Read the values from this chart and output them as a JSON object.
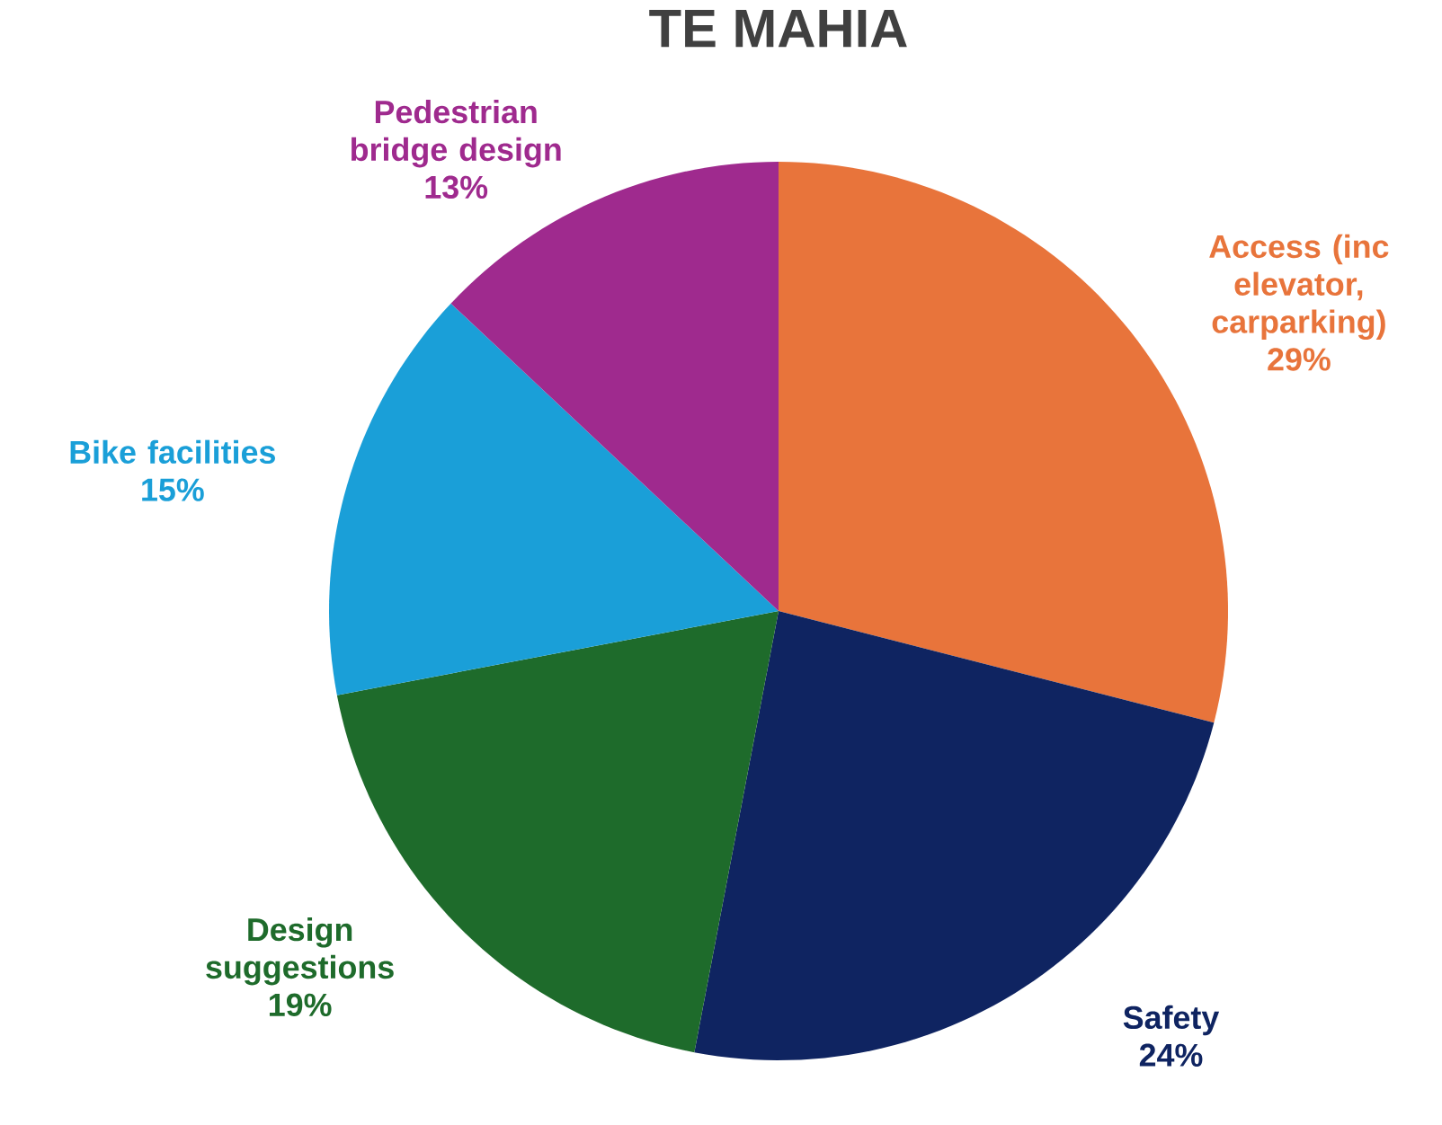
{
  "chart_data": {
    "type": "pie",
    "title": "TE MAHIA",
    "categories": [
      "Access (inc elevator, carparking)",
      "Safety",
      "Design suggestions",
      "Bike facilities",
      "Pedestrian bridge design"
    ],
    "values": [
      29,
      24,
      19,
      15,
      13
    ],
    "colors": [
      "#e8743b",
      "#0f2461",
      "#1e6b2b",
      "#1a9fd8",
      "#9f2a8e"
    ],
    "value_labels": [
      "29%",
      "24%",
      "19%",
      "15%",
      "13%"
    ]
  }
}
